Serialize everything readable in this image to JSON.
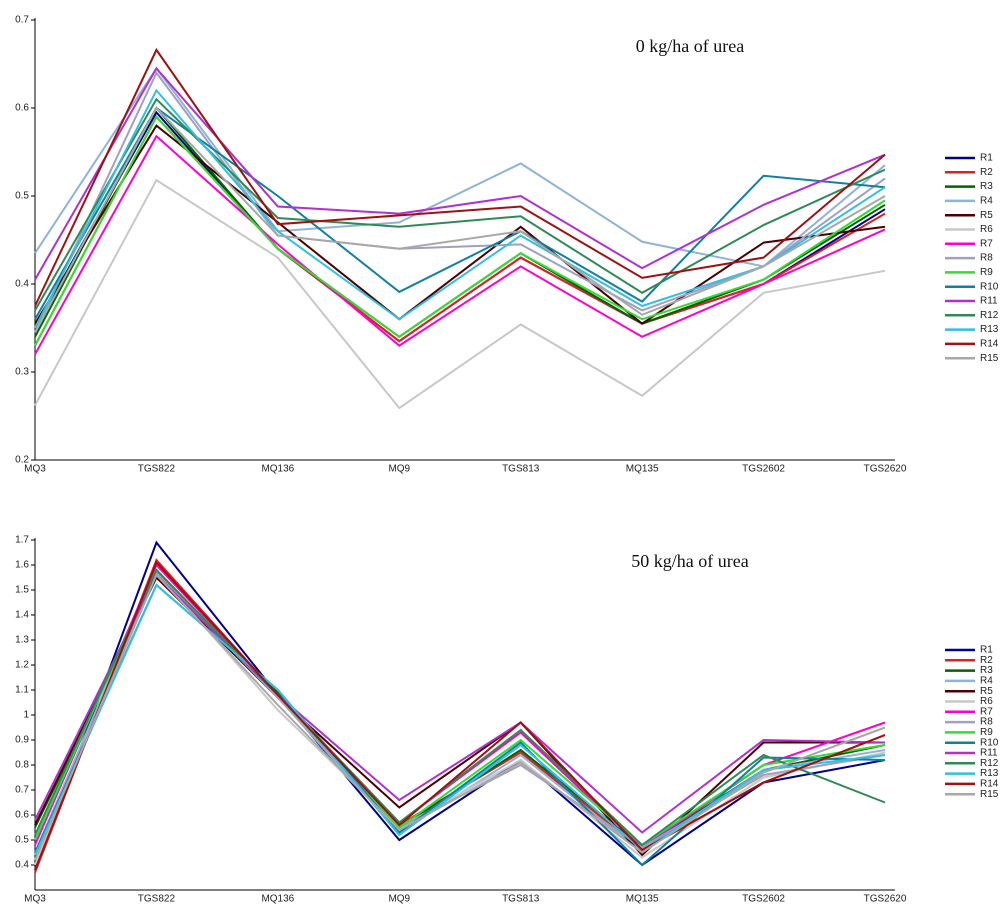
{
  "chart_data": [
    {
      "type": "line",
      "title": "0 kg/ha of urea",
      "categories": [
        "MQ3",
        "TGS822",
        "MQ136",
        "MQ9",
        "TGS813",
        "MQ135",
        "TGS2602",
        "TGS2620"
      ],
      "ylim": [
        0.2,
        0.7
      ],
      "yticks": [
        0.2,
        0.3,
        0.4,
        0.5,
        0.6,
        0.7
      ],
      "series": [
        {
          "name": "R1",
          "color": "#00008b",
          "values": [
            0.35,
            0.595,
            0.44,
            0.335,
            0.43,
            0.355,
            0.4,
            0.485
          ]
        },
        {
          "name": "R2",
          "color": "#e02020",
          "values": [
            0.33,
            0.59,
            0.44,
            0.335,
            0.43,
            0.355,
            0.4,
            0.48
          ]
        },
        {
          "name": "R3",
          "color": "#006400",
          "values": [
            0.34,
            0.6,
            0.44,
            0.34,
            0.435,
            0.355,
            0.405,
            0.49
          ]
        },
        {
          "name": "R4",
          "color": "#8fb4d8",
          "values": [
            0.435,
            0.645,
            0.46,
            0.47,
            0.537,
            0.448,
            0.42,
            0.535
          ]
        },
        {
          "name": "R5",
          "color": "#4b0000",
          "values": [
            0.355,
            0.58,
            0.47,
            0.36,
            0.465,
            0.355,
            0.447,
            0.465
          ]
        },
        {
          "name": "R6",
          "color": "#c8c8c8",
          "values": [
            0.262,
            0.518,
            0.43,
            0.259,
            0.354,
            0.273,
            0.39,
            0.415
          ]
        },
        {
          "name": "R7",
          "color": "#ff00cc",
          "values": [
            0.32,
            0.568,
            0.445,
            0.33,
            0.42,
            0.34,
            0.4,
            0.462
          ]
        },
        {
          "name": "R8",
          "color": "#a0a0c0",
          "values": [
            0.345,
            0.64,
            0.455,
            0.44,
            0.445,
            0.37,
            0.42,
            0.52
          ]
        },
        {
          "name": "R9",
          "color": "#33dd33",
          "values": [
            0.33,
            0.59,
            0.44,
            0.34,
            0.435,
            0.36,
            0.405,
            0.495
          ]
        },
        {
          "name": "R10",
          "color": "#1080a0",
          "values": [
            0.36,
            0.6,
            0.5,
            0.391,
            0.46,
            0.38,
            0.523,
            0.51
          ]
        },
        {
          "name": "R11",
          "color": "#b030d0",
          "values": [
            0.405,
            0.645,
            0.488,
            0.48,
            0.5,
            0.418,
            0.49,
            0.547
          ]
        },
        {
          "name": "R12",
          "color": "#2e8b57",
          "values": [
            0.37,
            0.61,
            0.475,
            0.465,
            0.477,
            0.39,
            0.467,
            0.53
          ]
        },
        {
          "name": "R13",
          "color": "#30c0e0",
          "values": [
            0.35,
            0.62,
            0.46,
            0.36,
            0.455,
            0.375,
            0.42,
            0.51
          ]
        },
        {
          "name": "R14",
          "color": "#a01010",
          "values": [
            0.375,
            0.666,
            0.468,
            0.478,
            0.488,
            0.407,
            0.43,
            0.547
          ]
        },
        {
          "name": "R15",
          "color": "#a8a8a8",
          "values": [
            0.345,
            0.6,
            0.455,
            0.44,
            0.46,
            0.365,
            0.42,
            0.5
          ]
        }
      ]
    },
    {
      "type": "line",
      "title": "50 kg/ha of urea",
      "categories": [
        "MQ3",
        "TGS822",
        "MQ136",
        "MQ9",
        "TGS813",
        "MQ135",
        "TGS2602",
        "TGS2620"
      ],
      "ylim": [
        0.3,
        1.7
      ],
      "yticks": [
        0.4,
        0.5,
        0.6,
        0.7,
        0.8,
        0.9,
        1,
        1.1,
        1.2,
        1.3,
        1.4,
        1.5,
        1.6,
        1.7
      ],
      "series": [
        {
          "name": "R1",
          "color": "#00008b",
          "values": [
            0.38,
            1.69,
            1.08,
            0.5,
            0.82,
            0.4,
            0.73,
            0.82
          ]
        },
        {
          "name": "R2",
          "color": "#e02020",
          "values": [
            0.37,
            1.62,
            1.08,
            0.56,
            0.85,
            0.46,
            0.73,
            0.92
          ]
        },
        {
          "name": "R3",
          "color": "#006400",
          "values": [
            0.55,
            1.55,
            1.09,
            0.55,
            0.86,
            0.47,
            0.78,
            0.88
          ]
        },
        {
          "name": "R4",
          "color": "#8fb4d8",
          "values": [
            0.45,
            1.58,
            1.07,
            0.53,
            0.84,
            0.45,
            0.78,
            0.86
          ]
        },
        {
          "name": "R5",
          "color": "#4b0000",
          "values": [
            0.56,
            1.55,
            1.07,
            0.63,
            0.97,
            0.44,
            0.89,
            0.89
          ]
        },
        {
          "name": "R6",
          "color": "#c8c8c8",
          "values": [
            0.4,
            1.57,
            1.02,
            0.55,
            0.82,
            0.43,
            0.75,
            0.85
          ]
        },
        {
          "name": "R7",
          "color": "#ff00cc",
          "values": [
            0.48,
            1.6,
            1.08,
            0.57,
            0.93,
            0.47,
            0.8,
            0.97
          ]
        },
        {
          "name": "R8",
          "color": "#a0a0c0",
          "values": [
            0.42,
            1.57,
            1.07,
            0.55,
            0.8,
            0.47,
            0.76,
            0.84
          ]
        },
        {
          "name": "R9",
          "color": "#33dd33",
          "values": [
            0.5,
            1.58,
            1.08,
            0.55,
            0.9,
            0.48,
            0.8,
            0.88
          ]
        },
        {
          "name": "R10",
          "color": "#1080a0",
          "values": [
            0.45,
            1.52,
            1.1,
            0.53,
            0.89,
            0.4,
            0.83,
            0.82
          ]
        },
        {
          "name": "R11",
          "color": "#b030d0",
          "values": [
            0.58,
            1.56,
            1.08,
            0.66,
            0.97,
            0.53,
            0.9,
            0.89
          ]
        },
        {
          "name": "R12",
          "color": "#2e8b57",
          "values": [
            0.52,
            1.58,
            1.08,
            0.57,
            0.94,
            0.48,
            0.84,
            0.65
          ]
        },
        {
          "name": "R13",
          "color": "#30c0e0",
          "values": [
            0.44,
            1.52,
            1.1,
            0.52,
            0.88,
            0.46,
            0.78,
            0.84
          ]
        },
        {
          "name": "R14",
          "color": "#a01010",
          "values": [
            0.38,
            1.61,
            1.08,
            0.56,
            0.97,
            0.46,
            0.73,
            0.92
          ]
        },
        {
          "name": "R15",
          "color": "#a8a8a8",
          "values": [
            0.42,
            1.56,
            1.04,
            0.54,
            0.81,
            0.45,
            0.77,
            0.95
          ]
        }
      ]
    }
  ]
}
